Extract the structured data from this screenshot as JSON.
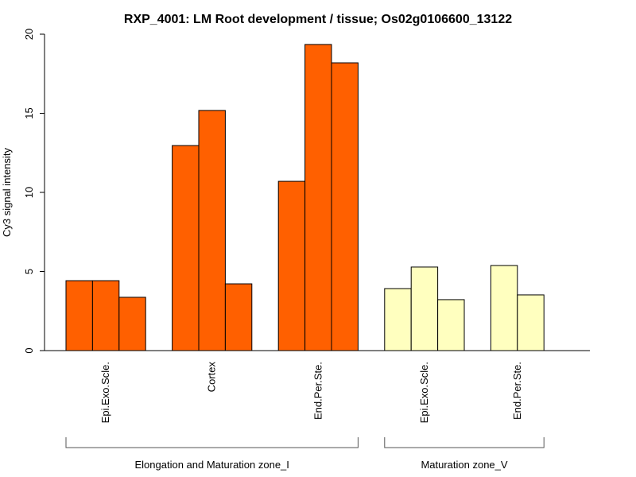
{
  "chart_data": {
    "type": "bar",
    "title": "RXP_4001: LM Root development / tissue; Os02g0106600_13122",
    "xlabel": "",
    "ylabel": "Cy3 signal intensity",
    "ylim": [
      0,
      20
    ],
    "yticks": [
      "0",
      "5",
      "10",
      "15",
      "20"
    ],
    "grid": false,
    "colors": {
      "zone_I": "#FF6000",
      "zone_V": "#FFFFBF",
      "border": "#000000"
    },
    "groups": [
      {
        "name": "Elongation and Maturation zone_I",
        "color_key": "zone_I",
        "categories": [
          {
            "label": "Epi.Exo.Scle.",
            "values": [
              4.42,
              4.42,
              3.37
            ]
          },
          {
            "label": "Cortex",
            "values": [
              12.96,
              15.18,
              4.22
            ]
          },
          {
            "label": "End.Per.Ste.",
            "values": [
              10.7,
              19.35,
              18.19
            ]
          }
        ]
      },
      {
        "name": "Maturation zone_V",
        "color_key": "zone_V",
        "categories": [
          {
            "label": "Epi.Exo.Scle.",
            "values": [
              3.92,
              5.28,
              3.22
            ]
          },
          {
            "label": "End.Per.Ste.",
            "values": [
              5.38,
              3.52
            ]
          }
        ]
      }
    ]
  }
}
